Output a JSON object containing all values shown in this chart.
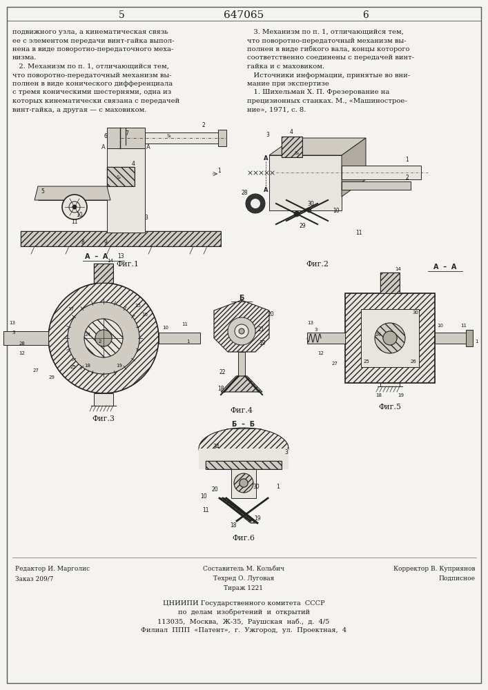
{
  "patent_number": "647065",
  "page_left": "5",
  "page_right": "6",
  "background_color": "#f5f3ef",
  "text_color": "#1a1a1a",
  "border_color": "#555555",
  "col_left_text_lines": [
    "подвижного узла, а кинематическая связь",
    "ее с элементом передачи винт-гайка выпол-",
    "нена в виде поворотно-передаточного меха-",
    "низма.",
    "   2. Механизм по п. 1, отличающийся тем,",
    "что поворотно-передаточный механизм вы-",
    "полнен в виде конического дифференциала",
    "с тремя коническими шестернями, одна из",
    "которых кинематически связана с передачей",
    "винт-гайка, а другая — с маховиком."
  ],
  "col_right_text_lines": [
    "   3. Механизм по п. 1, отличающийся тем,",
    "что поворотно-передаточный механизм вы-",
    "полнен в виде гибкого вала, концы которого",
    "соответственно соединены с передачей винт-",
    "гайка и с маховиком.",
    "   Источники информации, принятые во вни-",
    "мание при экспертизе",
    "   1. Шихельман Х. П. Фрезерование на",
    "прецизионных станках. М., «Машинострое-",
    "ние», 1971, с. 8."
  ],
  "fig_captions": [
    "Фиг.1",
    "Фиг.2",
    "Фиг.3",
    "Фиг.4",
    "Фиг.5",
    "Фиг.6"
  ],
  "bottom_left_text": [
    "Редактор И. Марголис",
    "Заказ 209/7"
  ],
  "bottom_center_text": [
    "Составитель М. Кольбич",
    "Техред О. Луговая",
    "Тираж 1221"
  ],
  "bottom_right_text": [
    "Корректор В. Куприянов",
    "Подписное"
  ],
  "bottom_org_text": [
    "ЦНИИПИ Государственного комитета  СССР",
    "по  делам  изобретений  и  открытий",
    "113035,  Москва,  Ж-35,  Раушская  наб.,  д.  4/5",
    "Филиал  ППП  «Патент»,  г.  Ужгород,  ул.  Проектная,  4"
  ],
  "lw": 0.7,
  "lw_heavy": 1.2,
  "draw_color": "#222222",
  "hatch_color": "#555555",
  "fill_light": "#e8e5df",
  "fill_mid": "#d0ccc4",
  "fill_dark": "#b0aba0"
}
